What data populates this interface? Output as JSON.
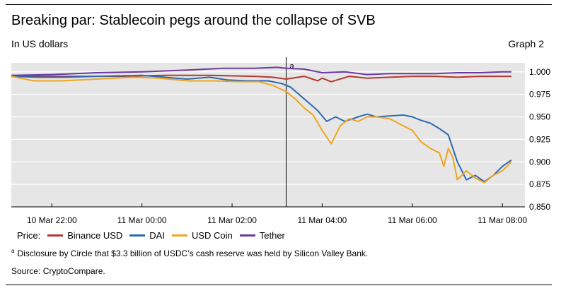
{
  "header": {
    "title": "Breaking par: Stablecoin pegs around the collapse of SVB",
    "subtitle": "In US dollars",
    "graph_label": "Graph 2"
  },
  "legend": {
    "prefix": "Price:"
  },
  "footnote": {
    "marker": "a",
    "text": "Disclosure by Circle that $3.3 billion of USDC’s cash reserve was held by Silicon Valley Bank."
  },
  "source": "Source: CryptoCompare.",
  "chart_data": {
    "type": "line",
    "title": "Breaking par: Stablecoin pegs around the collapse of SVB",
    "ylabel": "In US dollars",
    "x_unit": "hours",
    "x_ticks": [
      {
        "x": 0,
        "label": "10 Mar 22:00"
      },
      {
        "x": 2,
        "label": "11 Mar 00:00"
      },
      {
        "x": 4,
        "label": "11 Mar 02:00"
      },
      {
        "x": 6,
        "label": "11 Mar 04:00"
      },
      {
        "x": 8,
        "label": "11 Mar 06:00"
      },
      {
        "x": 10,
        "label": "11 Mar 08:00"
      }
    ],
    "xlim": [
      -0.9,
      10.5
    ],
    "ylim": [
      0.85,
      1.01
    ],
    "y_ticks": [
      1.0,
      0.975,
      0.95,
      0.925,
      0.9,
      0.875,
      0.85
    ],
    "y_tick_labels": [
      "1.000",
      "0.975",
      "0.950",
      "0.925",
      "0.900",
      "0.875",
      "0.850"
    ],
    "grid": "horizontal",
    "legend_position": "bottom",
    "annotations": [
      {
        "label": "a",
        "x": 5.2
      }
    ],
    "series": [
      {
        "name": "Binance USD",
        "color": "#b5382f",
        "x": [
          -0.9,
          -0.3,
          0.5,
          1.5,
          2.5,
          3.5,
          4.5,
          4.9,
          5.2,
          5.6,
          5.9,
          6.0,
          6.2,
          6.6,
          7.0,
          7.5,
          8.0,
          8.5,
          9.0,
          9.5,
          10.0,
          10.2
        ],
        "y": [
          0.995,
          0.995,
          0.995,
          0.995,
          0.996,
          0.996,
          0.995,
          0.994,
          0.992,
          0.995,
          0.99,
          0.993,
          0.989,
          0.995,
          0.993,
          0.994,
          0.995,
          0.995,
          0.994,
          0.995,
          0.995,
          0.995
        ]
      },
      {
        "name": "DAI",
        "color": "#2e69b0",
        "x": [
          -0.9,
          -0.3,
          0.3,
          1.0,
          2.0,
          2.5,
          3.0,
          3.5,
          3.9,
          4.3,
          4.8,
          5.1,
          5.3,
          5.6,
          5.9,
          6.1,
          6.3,
          6.5,
          6.8,
          7.0,
          7.2,
          7.5,
          7.8,
          8.0,
          8.2,
          8.4,
          8.6,
          8.8,
          9.0,
          9.2,
          9.4,
          9.6,
          9.8,
          10.0,
          10.2
        ],
        "y": [
          0.995,
          0.994,
          0.994,
          0.995,
          0.996,
          0.994,
          0.992,
          0.994,
          0.991,
          0.99,
          0.99,
          0.987,
          0.983,
          0.97,
          0.957,
          0.945,
          0.95,
          0.945,
          0.95,
          0.953,
          0.95,
          0.951,
          0.952,
          0.95,
          0.946,
          0.943,
          0.937,
          0.93,
          0.9,
          0.88,
          0.885,
          0.878,
          0.885,
          0.895,
          0.902
        ]
      },
      {
        "name": "USD Coin",
        "color": "#f0a51e",
        "x": [
          -0.9,
          -0.4,
          0.2,
          1.0,
          1.8,
          2.4,
          3.0,
          3.6,
          4.2,
          4.6,
          4.9,
          5.2,
          5.4,
          5.6,
          5.8,
          6.0,
          6.2,
          6.4,
          6.6,
          6.8,
          7.0,
          7.2,
          7.5,
          7.8,
          8.0,
          8.2,
          8.4,
          8.6,
          8.7,
          8.8,
          8.9,
          9.0,
          9.2,
          9.4,
          9.6,
          9.8,
          10.0,
          10.2
        ],
        "y": [
          0.995,
          0.99,
          0.99,
          0.992,
          0.994,
          0.993,
          0.99,
          0.99,
          0.989,
          0.989,
          0.985,
          0.978,
          0.97,
          0.96,
          0.952,
          0.935,
          0.92,
          0.94,
          0.948,
          0.945,
          0.95,
          0.95,
          0.948,
          0.94,
          0.935,
          0.922,
          0.915,
          0.91,
          0.895,
          0.915,
          0.905,
          0.88,
          0.89,
          0.882,
          0.877,
          0.885,
          0.89,
          0.9
        ]
      },
      {
        "name": "Tether",
        "color": "#6b3aa0",
        "x": [
          -0.9,
          0.0,
          1.0,
          2.0,
          3.0,
          3.8,
          4.5,
          5.0,
          5.2,
          5.6,
          6.0,
          6.5,
          7.0,
          7.5,
          8.0,
          8.5,
          9.0,
          9.5,
          10.0,
          10.2
        ],
        "y": [
          0.996,
          0.997,
          0.999,
          1.0,
          1.002,
          1.004,
          1.004,
          1.005,
          1.004,
          1.003,
          0.999,
          1.0,
          0.997,
          0.998,
          0.998,
          0.998,
          0.999,
          0.999,
          1.0,
          1.0
        ]
      }
    ]
  }
}
